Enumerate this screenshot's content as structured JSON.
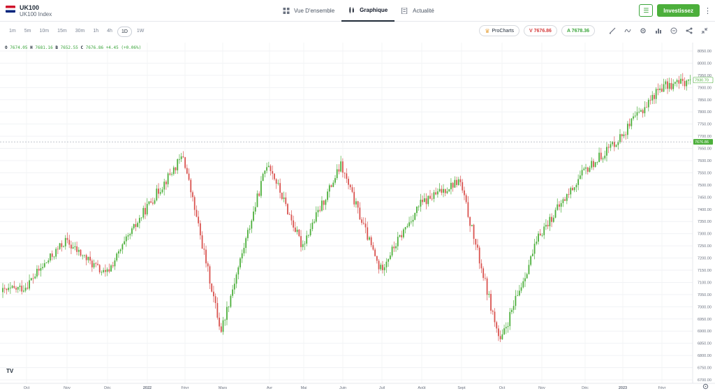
{
  "header": {
    "symbol": "UK100",
    "name": "UK100 Index",
    "tabs": [
      {
        "label": "Vue D'ensemble",
        "icon": "grid-icon",
        "active": false
      },
      {
        "label": "Graphique",
        "icon": "candlestick-icon",
        "active": true
      },
      {
        "label": "Actualité",
        "icon": "news-icon",
        "active": false
      }
    ],
    "invest_label": "Investissez"
  },
  "toolbar": {
    "intervals": [
      "1m",
      "5m",
      "10m",
      "15m",
      "30m",
      "1h",
      "4h",
      "1D",
      "1W"
    ],
    "active_interval": "1D",
    "procharts_label": "ProCharts",
    "sell_label": "V 7676.86",
    "buy_label": "A 7678.36",
    "icons": [
      "draw-icon",
      "indicators-icon",
      "settings-icon",
      "chart-type-icon",
      "compare-icon",
      "share-icon",
      "collapse-icon"
    ]
  },
  "ohlc": {
    "o_label": "O",
    "o": "7674.05",
    "h_label": "H",
    "h": "7681.16",
    "b_label": "B",
    "b": "7652.55",
    "c_label": "C",
    "c": "7676.86",
    "change": "+4.45 (+0.06%)"
  },
  "logo_text": "TV",
  "colors": {
    "up": "#4caf3b",
    "down": "#d9534f",
    "accent": "#4caf3b"
  },
  "chart_data": {
    "type": "candlestick",
    "y_ticks": [
      "8050.00",
      "8000.00",
      "7950.00",
      "7900.00",
      "7850.00",
      "7800.00",
      "7750.00",
      "7700.00",
      "7650.00",
      "7600.00",
      "7550.00",
      "7500.00",
      "7450.00",
      "7400.00",
      "7350.00",
      "7300.00",
      "7250.00",
      "7200.00",
      "7150.00",
      "7100.00",
      "7050.00",
      "7000.00",
      "6950.00",
      "6900.00",
      "6850.00",
      "6800.00",
      "6750.00",
      "6700.00"
    ],
    "ylim": [
      6700,
      8050
    ],
    "x_ticks": [
      "Oct",
      "Nov",
      "Déc",
      "2022",
      "Févr",
      "Mars",
      "Avr",
      "Mai",
      "Juin",
      "Juil",
      "Août",
      "Sept",
      "Oct",
      "Nov",
      "Déc",
      "2023",
      "Févr"
    ],
    "price_line_label": "7676.86",
    "price_line_value": 7676.86,
    "last_label": "7930.70",
    "last_value": 7930.7,
    "anchors": [
      {
        "x": "Oct",
        "v": 7080
      },
      {
        "x": "Nov",
        "v": 7270
      },
      {
        "x": "Déc",
        "v": 7130
      },
      {
        "x": "2022",
        "v": 7400
      },
      {
        "x": "Févr",
        "v": 7620
      },
      {
        "x": "Mars",
        "v": 6900
      },
      {
        "x": "Avr",
        "v": 7600
      },
      {
        "x": "Mai",
        "v": 7250
      },
      {
        "x": "Juin",
        "v": 7580
      },
      {
        "x": "Juil",
        "v": 7150
      },
      {
        "x": "Août",
        "v": 7420
      },
      {
        "x": "Sept",
        "v": 7520
      },
      {
        "x": "Oct",
        "v": 6850
      },
      {
        "x": "Nov",
        "v": 7300
      },
      {
        "x": "Déc",
        "v": 7550
      },
      {
        "x": "2023",
        "v": 7700
      },
      {
        "x": "Févr",
        "v": 7900
      }
    ]
  }
}
